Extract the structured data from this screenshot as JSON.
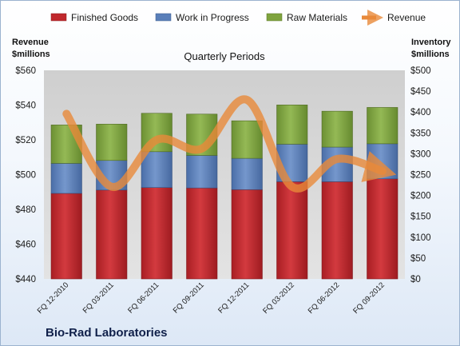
{
  "footer_text": "Bio-Rad Laboratories",
  "chart_data": {
    "type": "bar",
    "stacked": true,
    "title": "Quarterly Periods",
    "categories": [
      "FQ 12-2010",
      "FQ 03-2011",
      "FQ 06-2011",
      "FQ 09-2011",
      "FQ 12-2011",
      "FQ 03-2012",
      "FQ 06-2012",
      "FQ 09-2012"
    ],
    "y_left": {
      "label_line1": "Revenue",
      "label_line2": "$millions",
      "min": 440,
      "max": 560,
      "step": 20,
      "prefix": "$"
    },
    "y_right": {
      "label_line1": "Inventory",
      "label_line2": "$millions",
      "min": 0,
      "max": 500,
      "step": 50,
      "prefix": "$"
    },
    "series": [
      {
        "name": "Finished Goods",
        "axis": "right",
        "color": "#c0282d",
        "values": [
          205,
          213,
          219,
          218,
          214,
          233,
          233,
          240
        ]
      },
      {
        "name": "Work in Progress",
        "axis": "right",
        "color": "#5a7fb9",
        "values": [
          72,
          71,
          86,
          78,
          75,
          90,
          83,
          84
        ]
      },
      {
        "name": "Raw Materials",
        "axis": "right",
        "color": "#7fa33e",
        "values": [
          92,
          87,
          92,
          99,
          90,
          94,
          86,
          87
        ]
      }
    ],
    "line_series": {
      "name": "Revenue",
      "axis": "left",
      "color": "#e8893a",
      "values": [
        535,
        493,
        520,
        515,
        543,
        493,
        509,
        502
      ]
    },
    "legend_position": "top",
    "grid": false
  }
}
